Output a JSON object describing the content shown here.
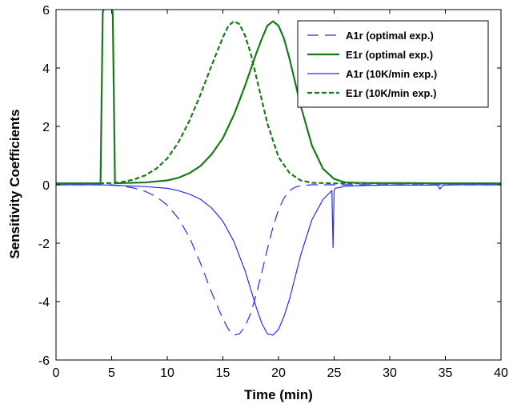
{
  "chart_data": {
    "type": "line",
    "title": "",
    "xlabel": "Time (min)",
    "ylabel": "Sensitivity Coefficients",
    "xlim": [
      0,
      40
    ],
    "ylim": [
      -6,
      6
    ],
    "xticks": [
      0,
      5,
      10,
      15,
      20,
      25,
      30,
      35,
      40
    ],
    "xtick_labels": [
      "0",
      "5",
      "10",
      "15",
      "20",
      "25",
      "30",
      "35",
      "40"
    ],
    "yticks": [
      -6,
      -4,
      -2,
      0,
      2,
      4,
      6
    ],
    "ytick_labels": [
      "-6",
      "-4",
      "-2",
      "0",
      "2",
      "4",
      "6"
    ],
    "grid": false,
    "legend_position": "top-right",
    "colors": {
      "blue": "#2b2bf0",
      "green": "#1a7a1a"
    },
    "series": [
      {
        "name": "A1r (optimal exp.)",
        "color": "blue",
        "style": "dashed",
        "x": [
          0,
          5,
          6,
          7,
          8,
          9,
          10,
          11,
          12,
          13,
          14,
          15,
          15.5,
          16,
          16.5,
          17,
          17.5,
          18,
          18.5,
          19,
          19.5,
          20,
          20.5,
          21,
          21.5,
          22,
          23,
          24,
          25,
          26,
          28,
          30,
          32,
          34,
          36,
          40
        ],
        "y": [
          0,
          0,
          -0.05,
          -0.11,
          -0.22,
          -0.4,
          -0.7,
          -1.15,
          -1.8,
          -2.7,
          -3.7,
          -4.6,
          -4.95,
          -5.15,
          -5.1,
          -4.85,
          -4.4,
          -3.75,
          -3.0,
          -2.2,
          -1.45,
          -0.85,
          -0.45,
          -0.2,
          -0.08,
          -0.03,
          0,
          0,
          0,
          0,
          0,
          0,
          0,
          0,
          0,
          0
        ]
      },
      {
        "name": "E1r (optimal exp.)",
        "color": "green",
        "style": "solid",
        "x": [
          0,
          4,
          4.2,
          4.5,
          4.8,
          5.1,
          5.3,
          6,
          8,
          10,
          11,
          12,
          13,
          14,
          15,
          16,
          17,
          18,
          18.5,
          19,
          19.5,
          20,
          20.5,
          21,
          22,
          23,
          24,
          25,
          26,
          28,
          30,
          32,
          34,
          36,
          40
        ],
        "y": [
          0.05,
          0.05,
          5.9,
          6.3,
          6.3,
          5.9,
          0.05,
          0.06,
          0.08,
          0.15,
          0.24,
          0.4,
          0.65,
          1.05,
          1.6,
          2.4,
          3.4,
          4.5,
          5.0,
          5.45,
          5.6,
          5.45,
          5.0,
          4.3,
          2.7,
          1.35,
          0.55,
          0.2,
          0.08,
          0.06,
          0.06,
          0.06,
          0.05,
          0.05,
          0.05
        ]
      },
      {
        "name": "A1r (10K/min exp.)",
        "color": "blue",
        "style": "solid",
        "x": [
          0,
          4,
          6,
          8,
          10,
          11,
          12,
          13,
          14,
          15,
          16,
          17,
          18,
          18.5,
          19,
          19.5,
          20,
          20.5,
          21,
          22,
          23,
          24,
          24.8,
          24.9,
          25,
          25.1,
          26,
          28,
          30,
          34.3,
          34.5,
          34.8,
          36,
          40
        ],
        "y": [
          0,
          0,
          -0.03,
          -0.06,
          -0.12,
          -0.2,
          -0.32,
          -0.5,
          -0.8,
          -1.25,
          -1.95,
          -2.95,
          -4.2,
          -4.75,
          -5.1,
          -5.15,
          -4.95,
          -4.5,
          -3.9,
          -2.4,
          -1.2,
          -0.5,
          -0.2,
          -2.15,
          -0.2,
          -0.12,
          -0.05,
          -0.02,
          -0.01,
          -0.01,
          -0.15,
          -0.01,
          0,
          0
        ]
      },
      {
        "name": "E1r (10K/min exp.)",
        "color": "green",
        "style": "dashed",
        "x": [
          0,
          4,
          5,
          6,
          7,
          8,
          9,
          10,
          11,
          12,
          13,
          14,
          15,
          15.5,
          16,
          16.5,
          17,
          17.5,
          18,
          18.5,
          19,
          20,
          21,
          22,
          23,
          24,
          25,
          26,
          28,
          30,
          32,
          34,
          36,
          40
        ],
        "y": [
          0.05,
          0.05,
          0.06,
          0.1,
          0.18,
          0.32,
          0.55,
          0.9,
          1.45,
          2.2,
          3.1,
          4.1,
          5.05,
          5.45,
          5.6,
          5.5,
          5.1,
          4.5,
          3.7,
          2.9,
          2.1,
          0.95,
          0.4,
          0.15,
          0.07,
          0.06,
          0.05,
          0.05,
          0.05,
          0.05,
          0.05,
          0.05,
          0.05,
          0.05
        ]
      }
    ]
  }
}
